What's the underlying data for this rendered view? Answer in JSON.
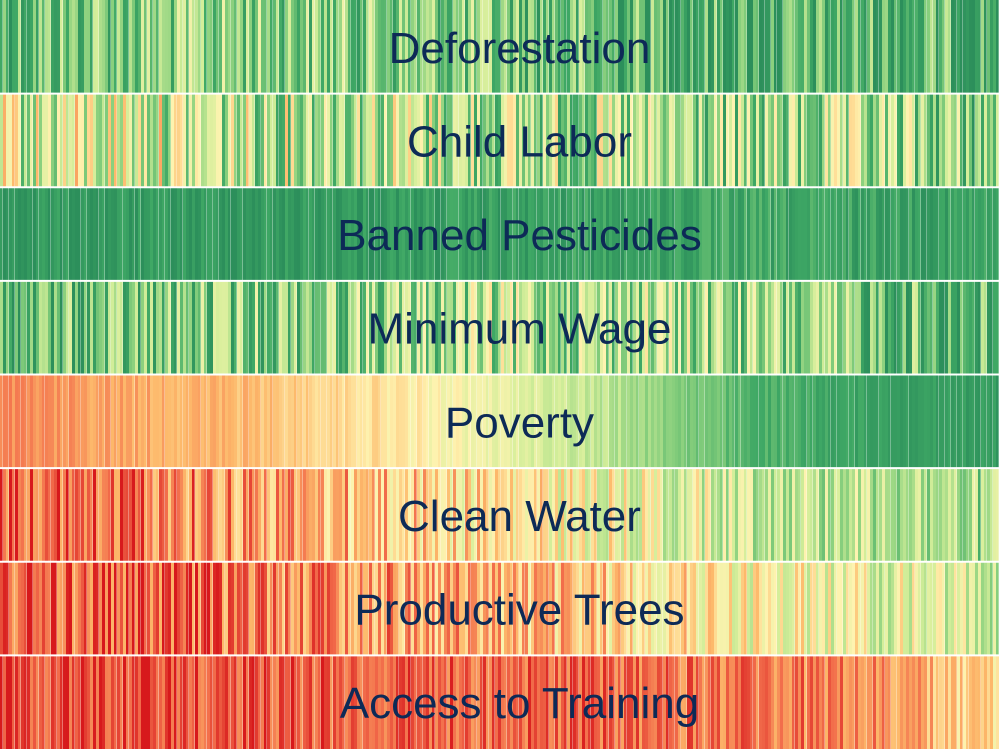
{
  "chart_data": {
    "type": "heatmap",
    "title": "",
    "xlabel": "",
    "ylabel": "",
    "colormap": {
      "name": "red-yellow-green",
      "stops": [
        "#d7191c",
        "#f26d4b",
        "#fdb96b",
        "#fef3b0",
        "#d4ee9a",
        "#88cf7d",
        "#3fa865",
        "#2c8f5b"
      ]
    },
    "divider_color": "#ffffff",
    "rows": [
      {
        "label": "Deforestation",
        "profile": [
          0.78,
          0.72,
          0.7,
          0.72,
          0.74,
          0.8,
          0.86,
          0.82,
          0.84
        ],
        "noise": 0.24
      },
      {
        "label": "Child Labor",
        "profile": [
          0.55,
          0.52,
          0.6,
          0.58,
          0.62,
          0.66,
          0.7,
          0.66,
          0.74
        ],
        "noise": 0.3
      },
      {
        "label": "Banned Pesticides",
        "profile": [
          0.95,
          0.95,
          0.94,
          0.93,
          0.92,
          0.9,
          0.88,
          0.9,
          0.9
        ],
        "noise": 0.09
      },
      {
        "label": "Minimum Wage",
        "profile": [
          0.82,
          0.78,
          0.72,
          0.68,
          0.64,
          0.62,
          0.68,
          0.76,
          0.84
        ],
        "noise": 0.26
      },
      {
        "label": "Poverty",
        "profile": [
          0.2,
          0.25,
          0.3,
          0.38,
          0.5,
          0.64,
          0.82,
          0.9,
          0.93
        ],
        "noise": 0.05
      },
      {
        "label": "Clean Water",
        "profile": [
          0.1,
          0.14,
          0.22,
          0.3,
          0.4,
          0.48,
          0.56,
          0.6,
          0.68
        ],
        "noise": 0.18
      },
      {
        "label": "Productive Trees",
        "profile": [
          0.1,
          0.12,
          0.16,
          0.22,
          0.28,
          0.36,
          0.44,
          0.5,
          0.56
        ],
        "noise": 0.18
      },
      {
        "label": "Access to Training",
        "profile": [
          0.08,
          0.09,
          0.1,
          0.12,
          0.12,
          0.14,
          0.16,
          0.2,
          0.4
        ],
        "noise": 0.12
      }
    ]
  }
}
